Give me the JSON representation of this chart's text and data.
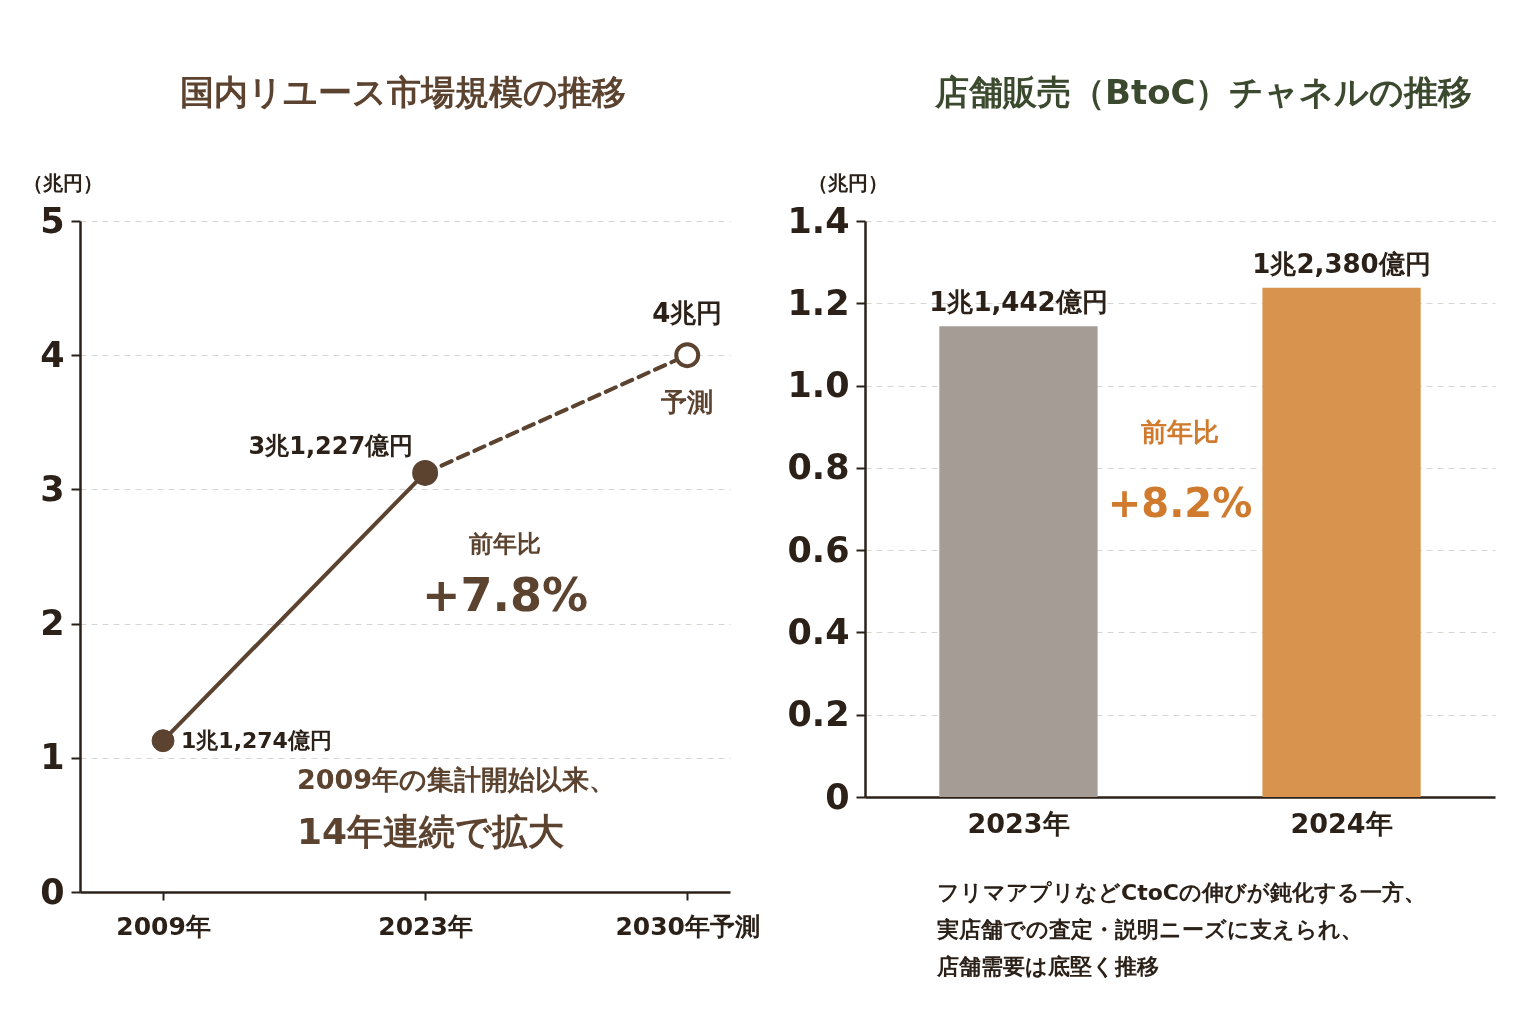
{
  "chart_data": [
    {
      "type": "line",
      "title": "国内リユース市場規模の推移",
      "ylabel": "（兆円）",
      "categories": [
        "2009年",
        "2023年",
        "2030年予測"
      ],
      "series": [
        {
          "color": "#5c4330",
          "line_style": "solid",
          "values": [
            1.1274,
            3.1227,
            null
          ],
          "value_labels": [
            "1兆1,274億円",
            "3兆1,227億円",
            null
          ]
        },
        {
          "color": "#5c4330",
          "line_style": "dashed",
          "values": [
            null,
            3.1227,
            4
          ],
          "value_labels": [
            null,
            null,
            "4兆円"
          ]
        }
      ],
      "ylim": [
        0,
        5
      ],
      "yticks": [
        0,
        1,
        2,
        3,
        4,
        5
      ],
      "grid": "y",
      "marker": "circle",
      "annotations": [
        {
          "text": "予測",
          "x": "2030年予測",
          "y": 4
        },
        {
          "text": "前年比",
          "x": "2023年",
          "y": 3.1227
        },
        {
          "text": "+7.8%",
          "x": "2023年",
          "y": 3.1227
        },
        "2009年の集計開始以来、",
        "14年連続で拡大"
      ]
    },
    {
      "type": "bar",
      "title": "店舗販売（BtoC）チャネルの推移",
      "ylabel": "（兆円）",
      "categories": [
        "2023年",
        "2024年"
      ],
      "values": [
        1.1442,
        1.238
      ],
      "colors": [
        "#a59d95",
        "#d8944f"
      ],
      "value_labels": [
        "1兆1,442億円",
        "1兆2,380億円"
      ],
      "ylim": [
        0,
        1.4
      ],
      "yticks": [
        0,
        0.2,
        0.4,
        0.6,
        0.8,
        {
          "value": 1,
          "label": "1.0"
        },
        1.2,
        1.4
      ],
      "grid": "y",
      "annotations": [
        "前年比",
        "+8.2%",
        "フリマアプリなどCtoCの伸びが鈍化する一方、",
        "実店舗での査定・説明ニーズに支えられ、",
        "店舗需要は底堅く推移"
      ]
    }
  ]
}
